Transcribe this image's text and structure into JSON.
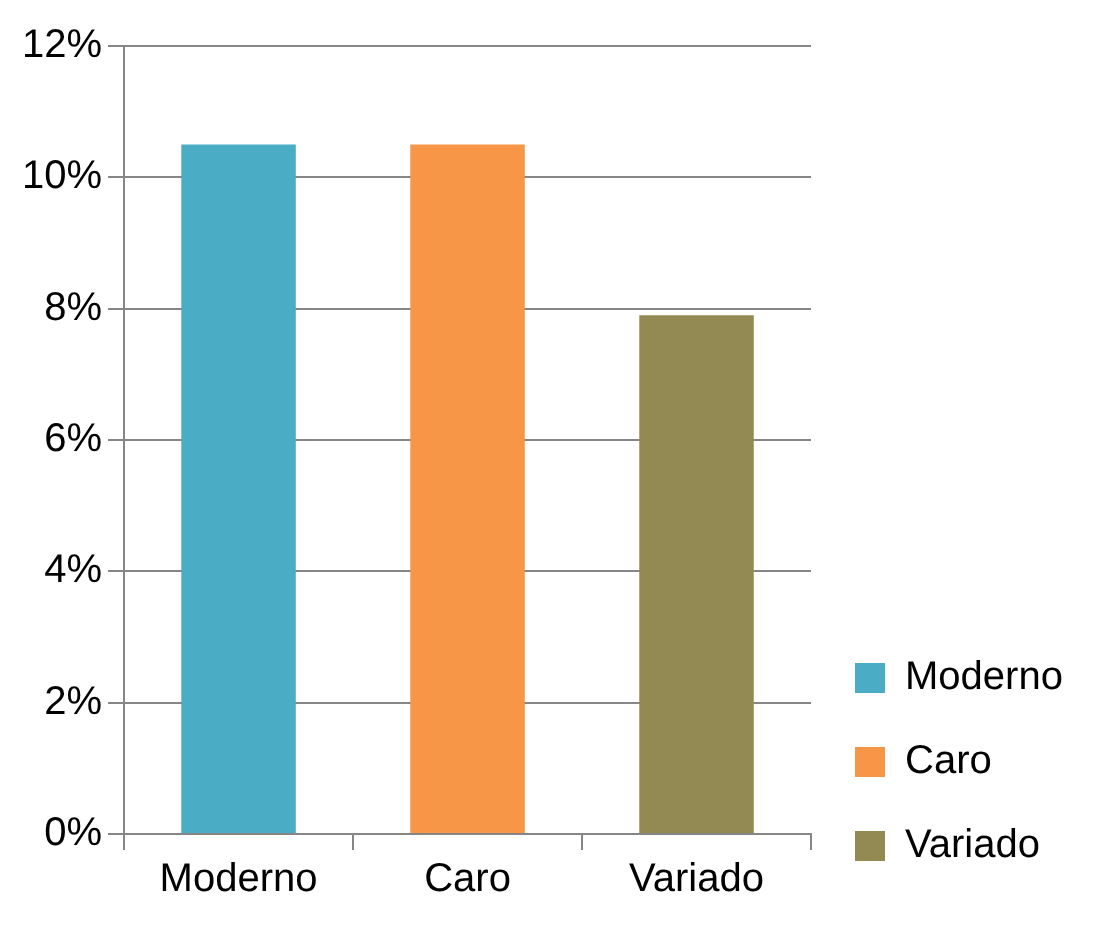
{
  "chart_data": {
    "type": "bar",
    "categories": [
      "Moderno",
      "Caro",
      "Variado"
    ],
    "series": [
      {
        "name": "Moderno",
        "color": "#4bacc6",
        "values": [
          10.5,
          null,
          null
        ]
      },
      {
        "name": "Caro",
        "color": "#f79646",
        "values": [
          null,
          10.5,
          null
        ]
      },
      {
        "name": "Variado",
        "color": "#938953",
        "values": [
          null,
          null,
          7.9
        ]
      }
    ],
    "ylim": [
      0,
      12
    ],
    "yticks": [
      {
        "value": 0,
        "label": "0%"
      },
      {
        "value": 2,
        "label": "2%"
      },
      {
        "value": 4,
        "label": "4%"
      },
      {
        "value": 6,
        "label": "6%"
      },
      {
        "value": 8,
        "label": "8%"
      },
      {
        "value": 10,
        "label": "10%"
      },
      {
        "value": 12,
        "label": "12%"
      }
    ],
    "grid": "y",
    "legend": "bottom right"
  }
}
